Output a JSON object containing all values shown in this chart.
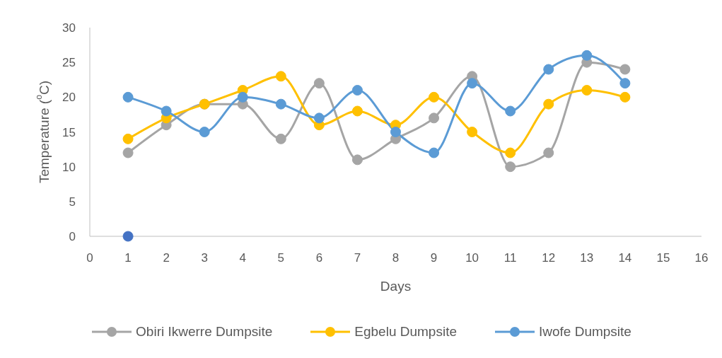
{
  "chart_data": {
    "type": "line",
    "xlabel": "Days",
    "ylabel": "Temperature ($^{o}$C)",
    "x": [
      1,
      2,
      3,
      4,
      5,
      6,
      7,
      8,
      9,
      10,
      11,
      12,
      13,
      14
    ],
    "series": [
      {
        "name": "Obiri Ikwerre Dumpsite",
        "color": "#a5a5a5",
        "values": [
          12,
          16,
          19,
          19,
          14,
          22,
          11,
          14,
          17,
          23,
          10,
          12,
          25,
          24
        ]
      },
      {
        "name": "Egbelu Dumpsite",
        "color": "#ffc000",
        "values": [
          14,
          17,
          19,
          21,
          23,
          16,
          18,
          16,
          20,
          15,
          12,
          19,
          21,
          20
        ]
      },
      {
        "name": "Iwofe Dumpsite",
        "color": "#5b9bd5",
        "values": [
          20,
          18,
          15,
          20,
          19,
          17,
          21,
          15,
          12,
          22,
          18,
          24,
          26,
          22
        ]
      },
      {
        "type": "scatter",
        "color": "#4472c4",
        "x": [
          1
        ],
        "values": [
          0
        ]
      }
    ],
    "xlim": [
      0,
      16
    ],
    "xticks": [
      0,
      1,
      2,
      3,
      4,
      5,
      6,
      7,
      8,
      9,
      10,
      11,
      12,
      13,
      14,
      15,
      16
    ],
    "ylim": [
      0,
      30
    ],
    "yticks": [
      0,
      5,
      10,
      15,
      20,
      25,
      30
    ],
    "marker": "circle",
    "legend": "bottom"
  }
}
